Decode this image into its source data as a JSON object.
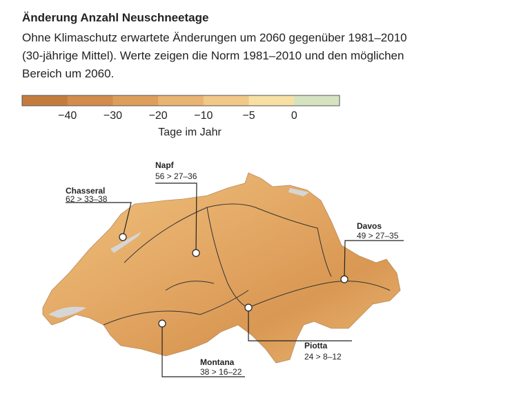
{
  "header": {
    "title": "Änderung Anzahl Neuschneetage",
    "subtitle": [
      "Ohne Klimaschutz erwartete Änderungen um 2060 gegenüber 1981–2010",
      "(30-jährige Mittel). Werte zeigen die Norm 1981–2010 und den möglichen",
      "Bereich um 2060."
    ]
  },
  "legend": {
    "colors": [
      "#c47c3e",
      "#d28c4c",
      "#de9e5b",
      "#e9b372",
      "#f1c887",
      "#f7e0a4",
      "#d6e3c1"
    ],
    "ticks": [
      "−40",
      "−30",
      "−20",
      "−10",
      "−5",
      "0"
    ],
    "label": "Tage im Jahr"
  },
  "stations": [
    {
      "name": "Chasseral",
      "values": "62 > 33–38"
    },
    {
      "name": "Napf",
      "values": "56 > 27–36"
    },
    {
      "name": "Davos",
      "values": "49 > 27–35"
    },
    {
      "name": "Piotta",
      "values": "24 > 8–12"
    },
    {
      "name": "Montana",
      "values": "38 > 16–22"
    }
  ]
}
